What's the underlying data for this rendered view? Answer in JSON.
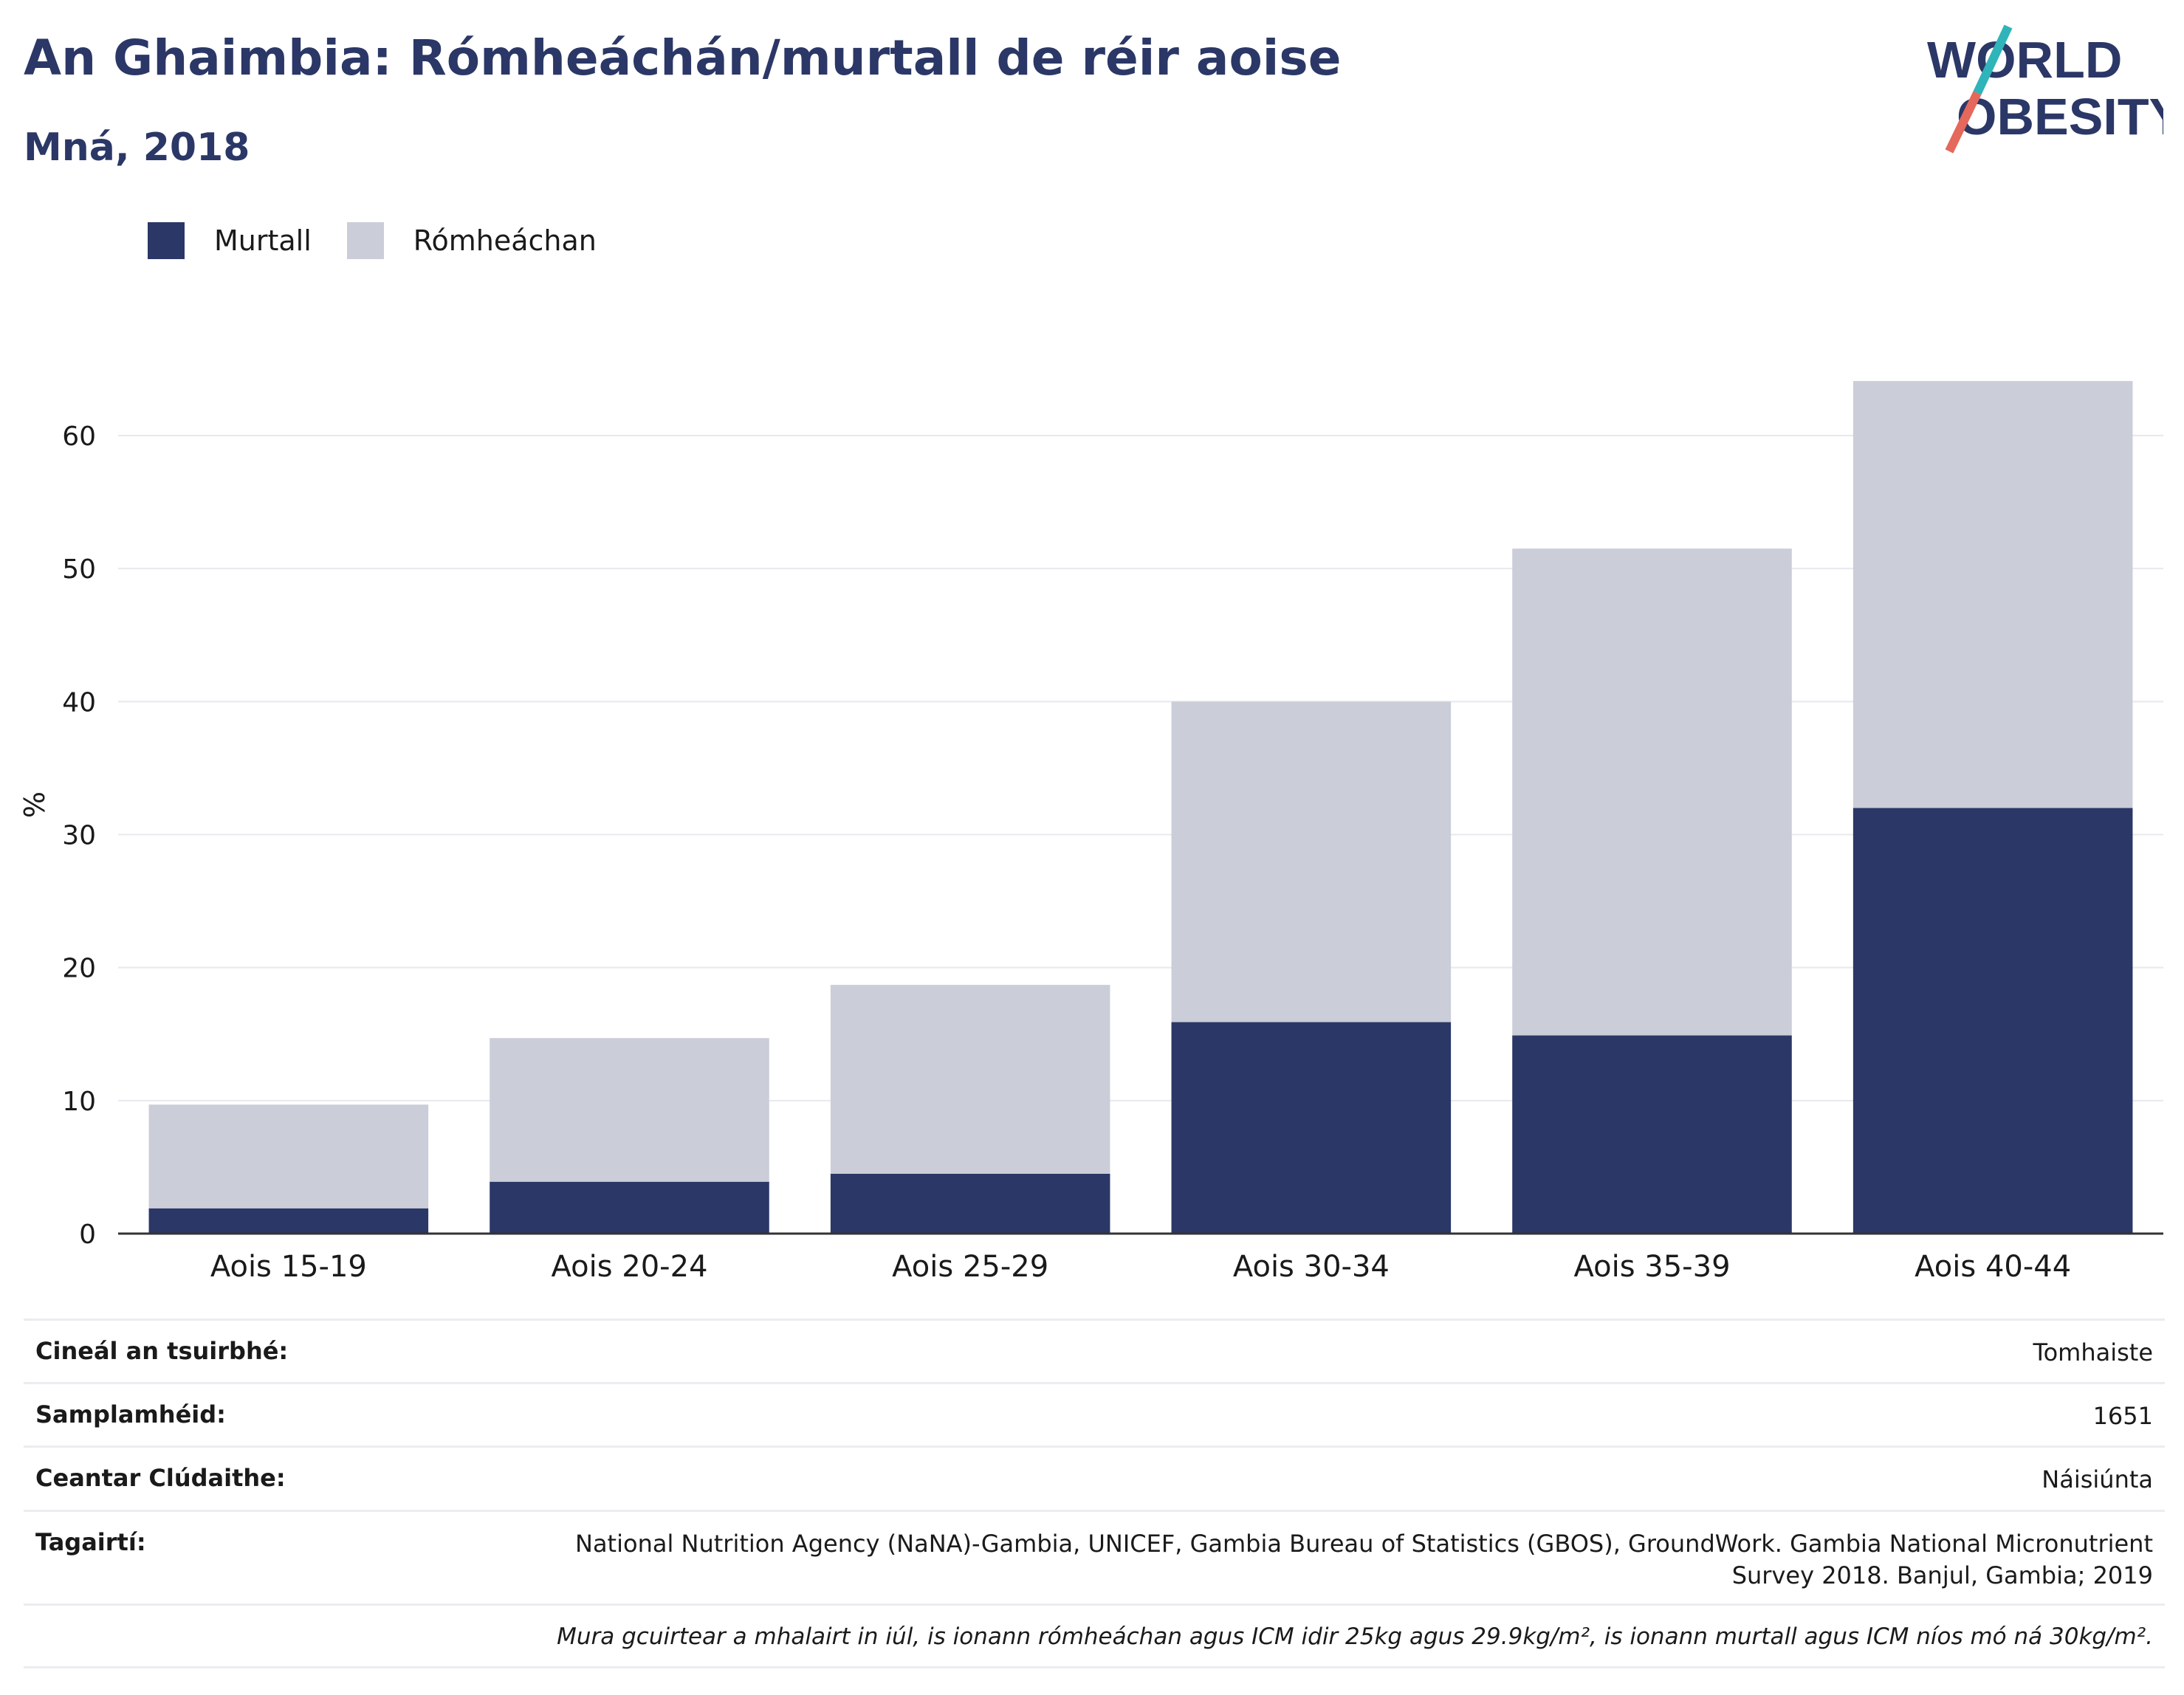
{
  "header": {
    "title": "An Ghaimbia: Rómheáchán/murtall de réir aoise",
    "subtitle": "Mná, 2018"
  },
  "logo": {
    "line1": "WORLD",
    "line2": "OBESITY"
  },
  "colors": {
    "obese": "#2b3766",
    "overweight": "#cbcdd8",
    "title": "#2b3766",
    "logo_slash_top": "#2fb4b9",
    "logo_slash_bottom": "#e4685b"
  },
  "chart_data": {
    "type": "bar",
    "stacked": true,
    "categories": [
      "Aois 15-19",
      "Aois 20-24",
      "Aois 25-29",
      "Aois 30-34",
      "Aois 35-39",
      "Aois 40-44"
    ],
    "series": [
      {
        "name": "Murtall",
        "values": [
          1.9,
          3.9,
          4.5,
          15.9,
          14.9,
          32.0
        ]
      },
      {
        "name": "Rómheáchan",
        "values": [
          7.8,
          10.8,
          14.2,
          24.1,
          36.6,
          32.1
        ]
      }
    ],
    "ylabel": "%",
    "ylim": [
      0,
      65
    ],
    "yticks": [
      0,
      10,
      20,
      30,
      40,
      50,
      60
    ],
    "grid": true,
    "legend_position": "top-left"
  },
  "info": {
    "survey_type": {
      "label": "Cineál an tsuirbhé:",
      "value": "Tomhaiste"
    },
    "sample_size": {
      "label": "Samplamhéid:",
      "value": "1651"
    },
    "coverage": {
      "label": "Ceantar Clúdaithe:",
      "value": "Náisiúnta"
    },
    "references": {
      "label": "Tagairtí:",
      "value_line1": "National Nutrition Agency (NaNA)-Gambia, UNICEF, Gambia Bureau of Statistics (GBOS), GroundWork. Gambia National Micronutrient",
      "value_line2": "Survey 2018. Banjul, Gambia; 2019"
    },
    "note": "Mura gcuirtear a mhalairt in iúl, is ionann rómheáchan agus ICM idir 25kg agus 29.9kg/m², is ionann murtall agus ICM níos mó ná 30kg/m²."
  }
}
